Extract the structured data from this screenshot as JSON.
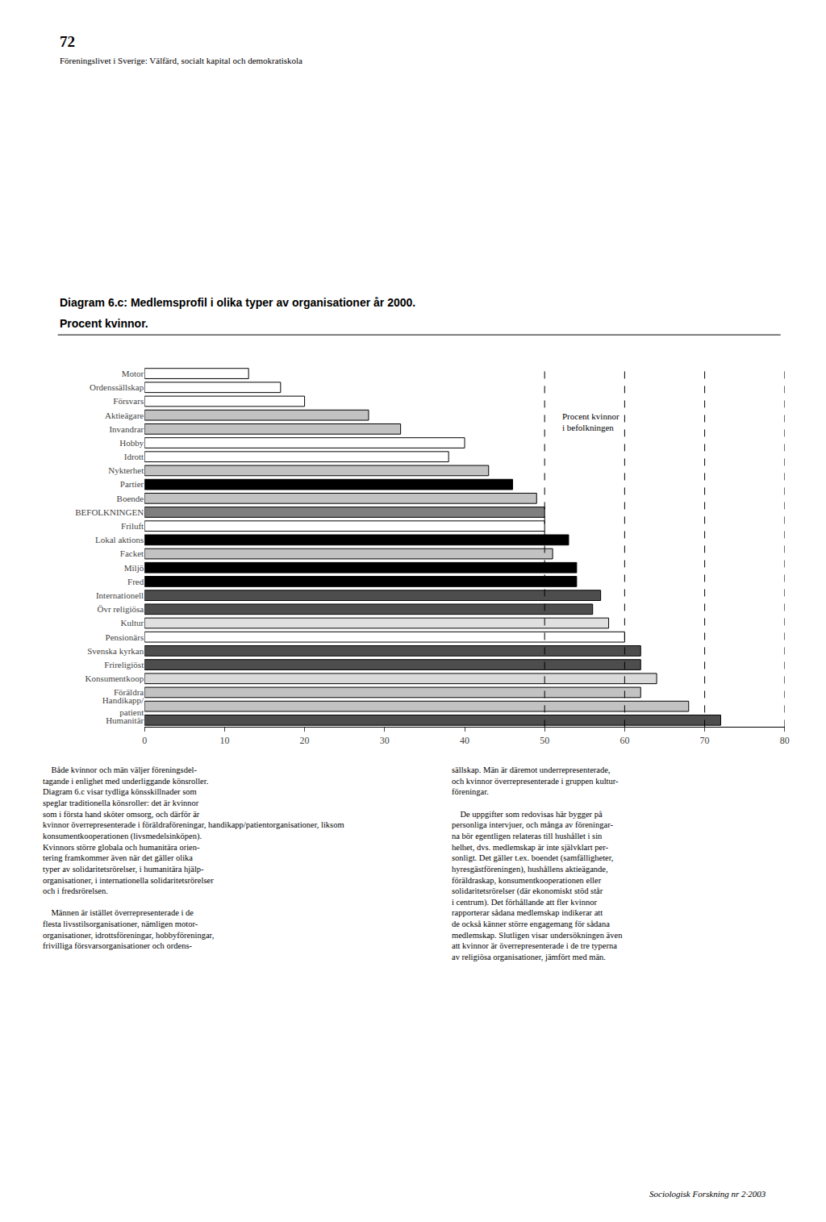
{
  "page_number": "72",
  "page_subtitle": "Föreningslivet i Sverige: Välfärd, socialt kapital och demokratiskola",
  "footer": "Sociologisk Forskning nr 2·2003",
  "body_text_left": [
    [
      "    Både kvinnor och män väljer föreningsdel-",
      "tagande i enlighet med underliggande könsroller.",
      "Diagram 6.c visar tydliga könsskillnader som",
      "speglar traditionella könsroller: det är kvinnor",
      "som i första hand sköter omsorg, och därför är",
      "kvinnor överrepresenterade i föräldraföreningar, handikapp/patientorganisationer, liksom",
      "konsumentkooperationen (livsmedelsinköpen).",
      "Kvinnors större globala och humanitära orien-",
      "tering framkommer även när det gäller olika",
      "typer av solidaritetsrörelser, i humanitära hjälp-",
      "organisationer, i internationella solidaritetsrörelser",
      "och i fredsrörelsen."
    ],
    [
      "    Männen är istället överrepresenterade i de",
      "flesta livsstilsorganisationer, nämligen motor-",
      "organisationer, idrottsföreningar, hobbyföreningar,",
      "frivilliga försvarsorganisationer och ordens-"
    ]
  ],
  "body_text_right": [
    [
      "sällskap. Män är däremot underrepresenterade,",
      "och kvinnor överrepresenterade i gruppen kultur-",
      "föreningar."
    ],
    [
      "    De uppgifter som redovisas här bygger på",
      "personliga intervjuer, och många av föreningar-",
      "na bör egentligen relateras till hushållet i sin",
      "helhet, dvs. medlemskap är inte självklart per-",
      "sonligt. Det gäller t.ex. boendet (samfälligheter,",
      "hyresgästföreningen), hushållens aktieägande,",
      "föräldraskap, konsumentkooperationen eller",
      "solidaritetsrörelser (där ekonomiskt stöd står",
      "i centrum). Det förhållande att fler kvinnor",
      "rapporterar sådana medlemskap indikerar att",
      "de också känner större engagemang för sådana",
      "medlemskap. Slutligen visar undersökningen även",
      "att kvinnor är överrepresenterade i de tre typerna",
      "av religiösa organisationer, jämfört med män."
    ]
  ],
  "chart_data": {
    "type": "bar",
    "orientation": "horizontal",
    "title": "Diagram 6.c: Medlemsprofil i olika typer av organisationer år 2000.",
    "subtitle": "Procent kvinnor.",
    "annotation": "Procent kvinnor\ni befolkningen",
    "categories": [
      "Motor",
      "Ordenssällskap",
      "Försvars",
      "Aktieägare",
      "Invandrar",
      "Hobby",
      "Idrott",
      "Nykterhet",
      "Partier",
      "Boende",
      "BEFOLKNINGEN",
      "Friluft",
      "Lokal aktions",
      "Facket",
      "Miljö",
      "Fred",
      "Internationell",
      "Övr religiösa",
      "Kultur",
      "Pensionärs",
      "Svenska kyrkan",
      "Frireligiöst",
      "Konsumentkoop",
      "Föräldra",
      "Handikapp/\npatient",
      "Humanitär"
    ],
    "values": [
      13,
      17,
      20,
      28,
      32,
      40,
      38,
      43,
      46,
      49,
      50,
      50,
      53,
      51,
      54,
      54,
      57,
      56,
      58,
      60,
      62,
      62,
      64,
      62,
      68,
      72
    ],
    "colors": [
      "#ffffff",
      "#ffffff",
      "#ffffff",
      "#c2c2c2",
      "#c2c2c2",
      "#ffffff",
      "#ffffff",
      "#c2c2c2",
      "#000000",
      "#c2c2c2",
      "#7f7f7f",
      "#ffffff",
      "#000000",
      "#c2c2c2",
      "#000000",
      "#000000",
      "#4d4d4d",
      "#4d4d4d",
      "#e0e0e0",
      "#ffffff",
      "#4d4d4d",
      "#4d4d4d",
      "#d9d9d9",
      "#c2c2c2",
      "#c2c2c2",
      "#4d4d4d"
    ],
    "xlim": [
      0,
      80
    ],
    "xticks": [
      0,
      10,
      20,
      30,
      40,
      50,
      60,
      70,
      80
    ],
    "vlines": [
      50,
      60,
      70,
      80
    ],
    "grid": false
  }
}
